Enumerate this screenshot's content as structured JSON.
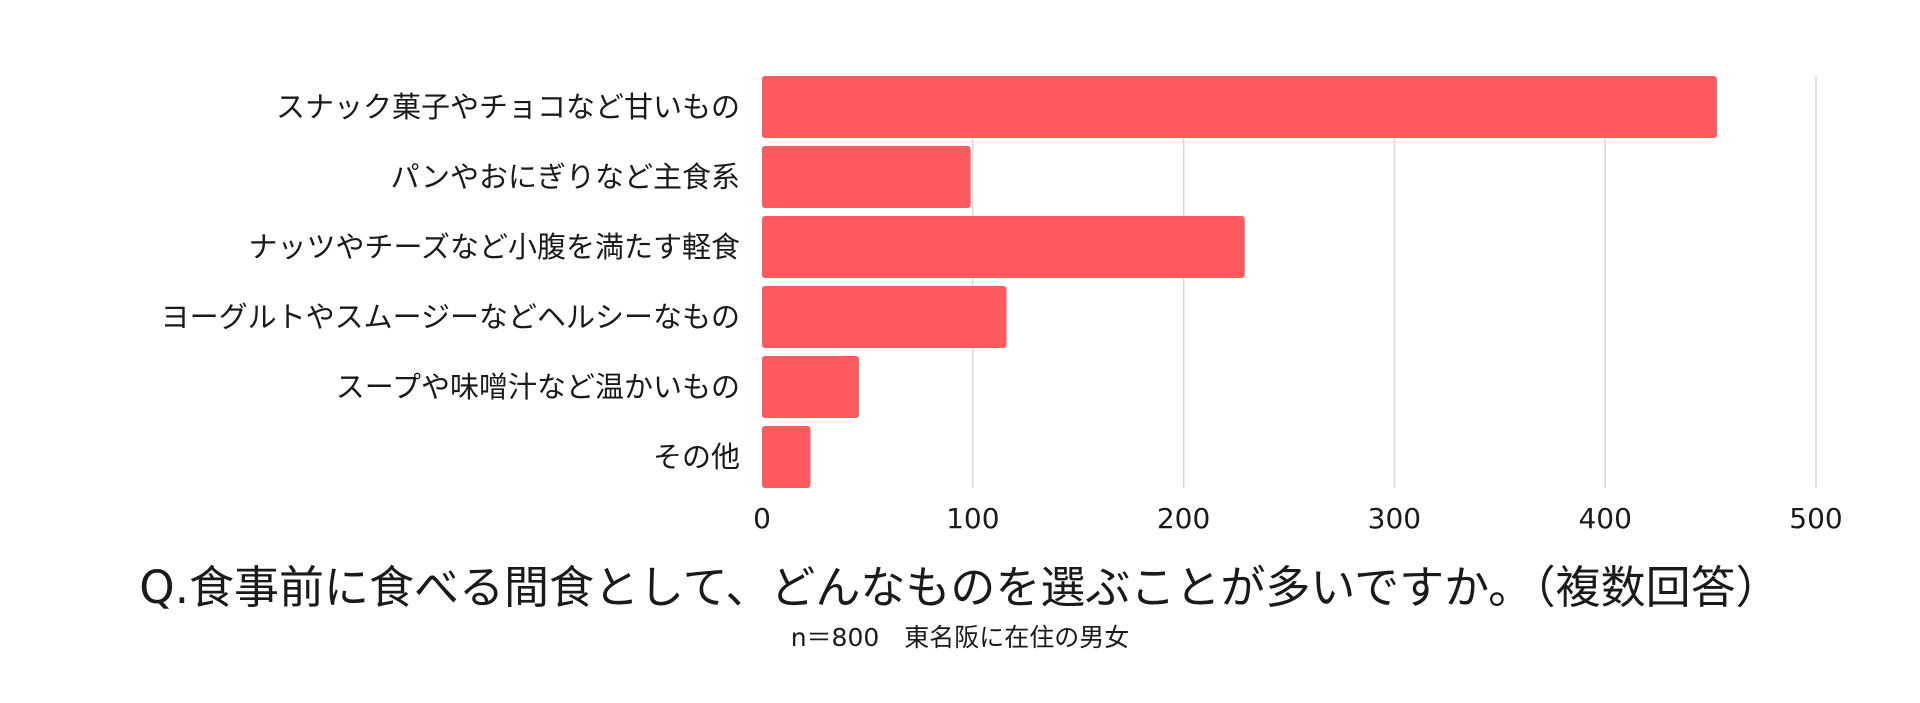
{
  "chart_data": {
    "type": "bar",
    "orientation": "horizontal",
    "title": "Q.食事前に食べる間食として、どんなものを選ぶことが多いですか。（複数回答）",
    "subtitle": "n＝800　東名阪に在住の男女",
    "categories": [
      "スナック菓子やチョコなど甘いもの",
      "パンやおにぎりなど主食系",
      "ナッツやチーズなど小腹を満たす軽食",
      "ヨーグルトやスムージーなどヘルシーなもの",
      "スープや味噌汁など温かいもの",
      "その他"
    ],
    "values": [
      453,
      99,
      229,
      116,
      46,
      23
    ],
    "xlim": [
      0,
      500
    ],
    "xticks": [
      0,
      100,
      200,
      300,
      400,
      500
    ],
    "grid": true,
    "legend": "none",
    "bar_color": "#ff5a5f",
    "grid_color": "#d9d9d9"
  }
}
